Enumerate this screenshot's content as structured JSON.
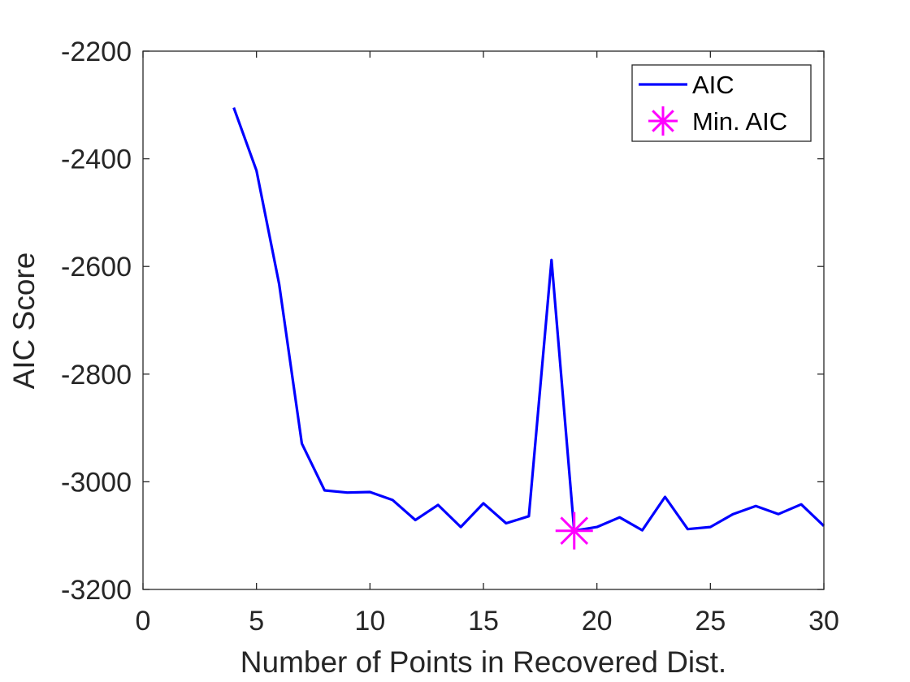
{
  "chart_data": {
    "type": "line",
    "title": "",
    "xlabel": "Number of Points in Recovered Dist.",
    "ylabel": "AIC Score",
    "xlim": [
      0,
      30
    ],
    "ylim": [
      -3200,
      -2200
    ],
    "x_ticks": [
      0,
      5,
      10,
      15,
      20,
      25,
      30
    ],
    "y_ticks": [
      -3200,
      -3000,
      -2800,
      -2600,
      -2400,
      -2200
    ],
    "x_tick_labels": [
      "0",
      "5",
      "10",
      "15",
      "20",
      "25",
      "30"
    ],
    "y_tick_labels": [
      "-3200",
      "-3000",
      "-2800",
      "-2600",
      "-2400",
      "-2200"
    ],
    "grid": false,
    "legend_position": "top-right",
    "series": [
      {
        "name": "AIC",
        "color": "#0000ff",
        "marker": "none",
        "x": [
          4,
          5,
          6,
          7,
          8,
          9,
          10,
          11,
          12,
          13,
          14,
          15,
          16,
          17,
          18,
          19,
          20,
          21,
          22,
          23,
          24,
          25,
          26,
          27,
          28,
          29,
          30
        ],
        "y": [
          -2305,
          -2422,
          -2633,
          -2929,
          -3016,
          -3020,
          -3019,
          -3034,
          -3071,
          -3043,
          -3084,
          -3040,
          -3077,
          -3064,
          -2588,
          -3091,
          -3084,
          -3066,
          -3090,
          -3028,
          -3088,
          -3084,
          -3060,
          -3045,
          -3060,
          -3042,
          -3082
        ]
      },
      {
        "name": "Min. AIC",
        "color": "#ff00ff",
        "marker": "asterisk",
        "x": [
          19
        ],
        "y": [
          -3091
        ]
      }
    ]
  }
}
